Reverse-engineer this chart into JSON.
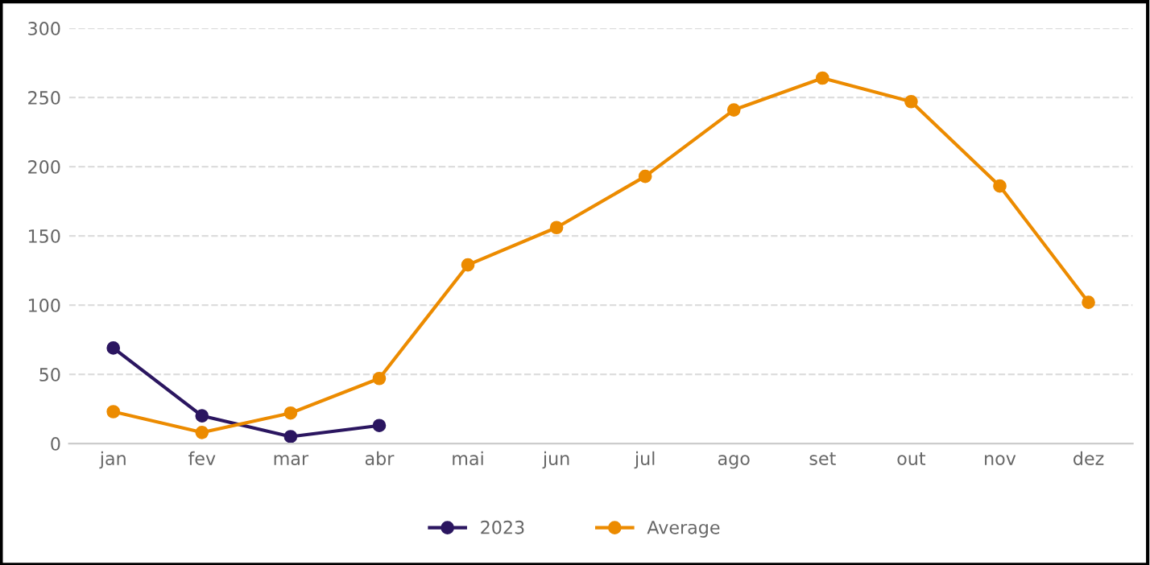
{
  "chart_data": {
    "type": "line",
    "categories": [
      "jan",
      "fev",
      "mar",
      "abr",
      "mai",
      "jun",
      "jul",
      "ago",
      "set",
      "out",
      "nov",
      "dez"
    ],
    "series": [
      {
        "name": "2023",
        "color": "#2b1660",
        "values": [
          69,
          20,
          5,
          13,
          null,
          null,
          null,
          null,
          null,
          null,
          null,
          null
        ]
      },
      {
        "name": "Average",
        "color": "#ec8b00",
        "values": [
          23,
          8,
          22,
          47,
          129,
          156,
          193,
          241,
          264,
          247,
          186,
          102
        ]
      }
    ],
    "ylim": [
      0,
      300
    ],
    "yticks": [
      0,
      50,
      100,
      150,
      200,
      250,
      300
    ],
    "grid": "y",
    "legend": "bottom",
    "marker": "circle",
    "line_style": "solid"
  }
}
